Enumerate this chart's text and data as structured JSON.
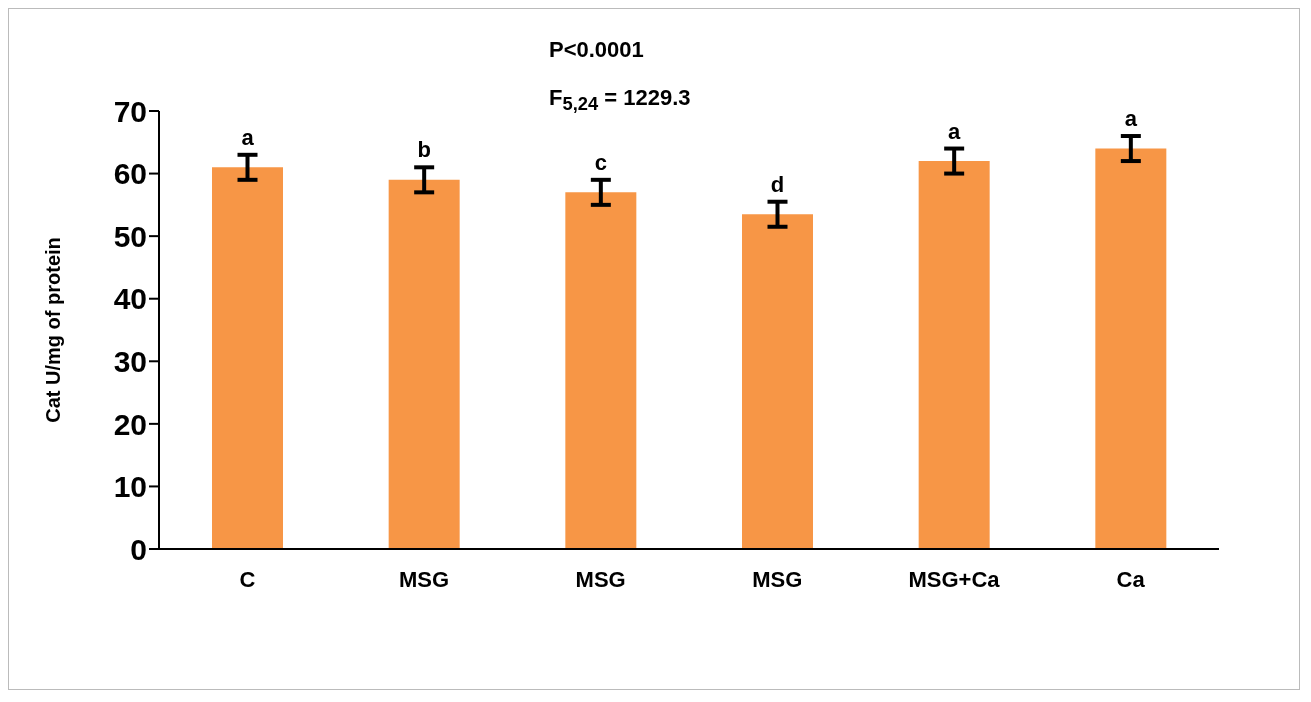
{
  "chart_data": {
    "type": "bar",
    "ylabel": "Cat U/mg of protein",
    "annotations": [
      "P<0.0001",
      "F$_{5,24}$ = 1229.3"
    ],
    "categories": [
      "C",
      "MSG",
      "MSG",
      "MSG",
      "MSG+Ca",
      "Ca"
    ],
    "values": [
      61,
      59,
      57,
      53.5,
      62,
      64
    ],
    "errors": [
      2,
      2,
      2,
      2,
      2,
      2
    ],
    "value_labels": [
      "a",
      "b",
      "c",
      "d",
      "a",
      "a"
    ],
    "color": "#f79646",
    "ylim": [
      0,
      70
    ],
    "yticks": [
      0,
      10,
      20,
      30,
      40,
      50,
      60,
      70
    ],
    "grid": false,
    "legend": false
  }
}
